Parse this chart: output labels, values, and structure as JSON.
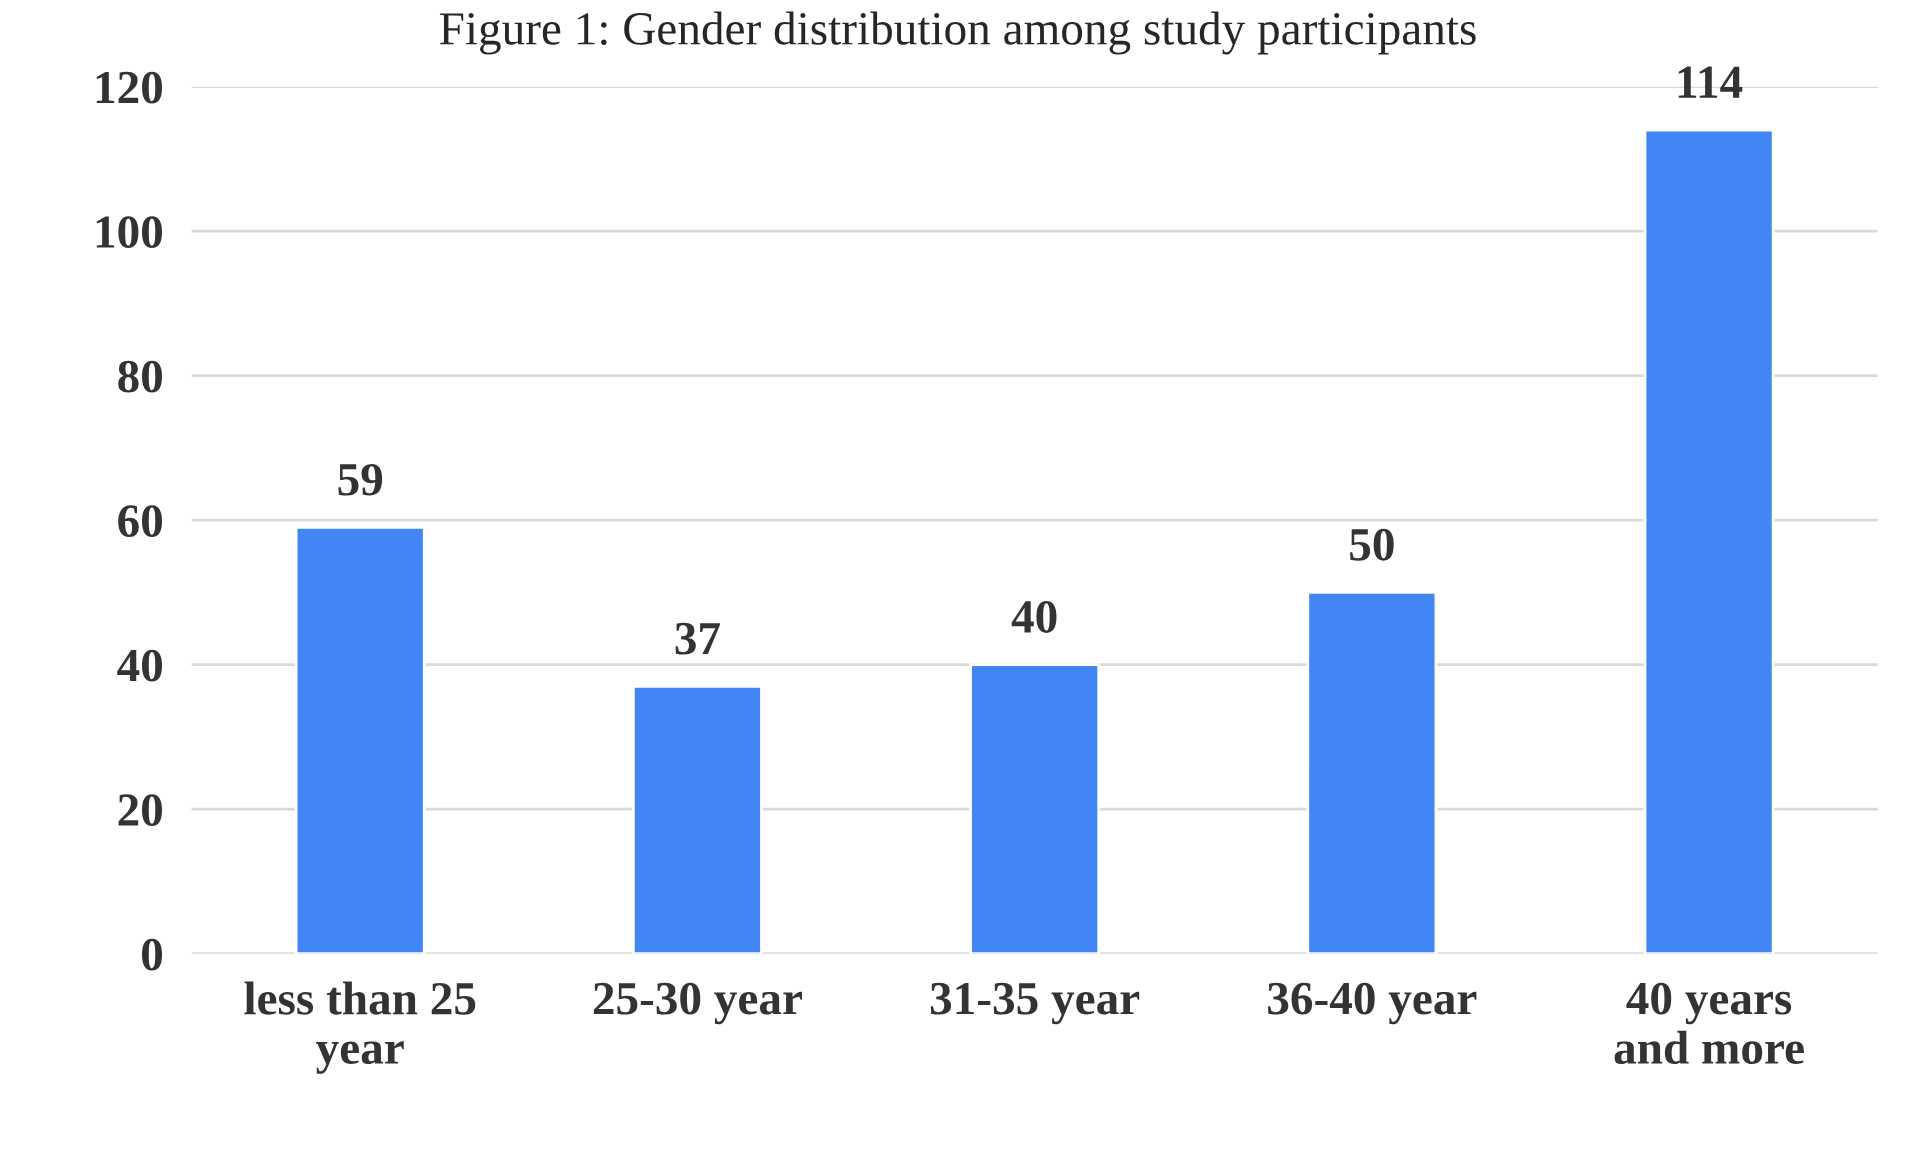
{
  "chart_data": {
    "type": "bar",
    "title": "Figure 1: Gender distribution among study participants",
    "categories": [
      "less than 25\nyear",
      "25-30 year",
      "31-35 year",
      "36-40 year",
      "40 years\nand more"
    ],
    "values": [
      59,
      37,
      40,
      50,
      114
    ],
    "color": "#4285f4",
    "ylim": [
      0,
      120
    ],
    "yticks": [
      0,
      20,
      40,
      60,
      80,
      100,
      120
    ],
    "grid": "y",
    "data_labels": true
  }
}
